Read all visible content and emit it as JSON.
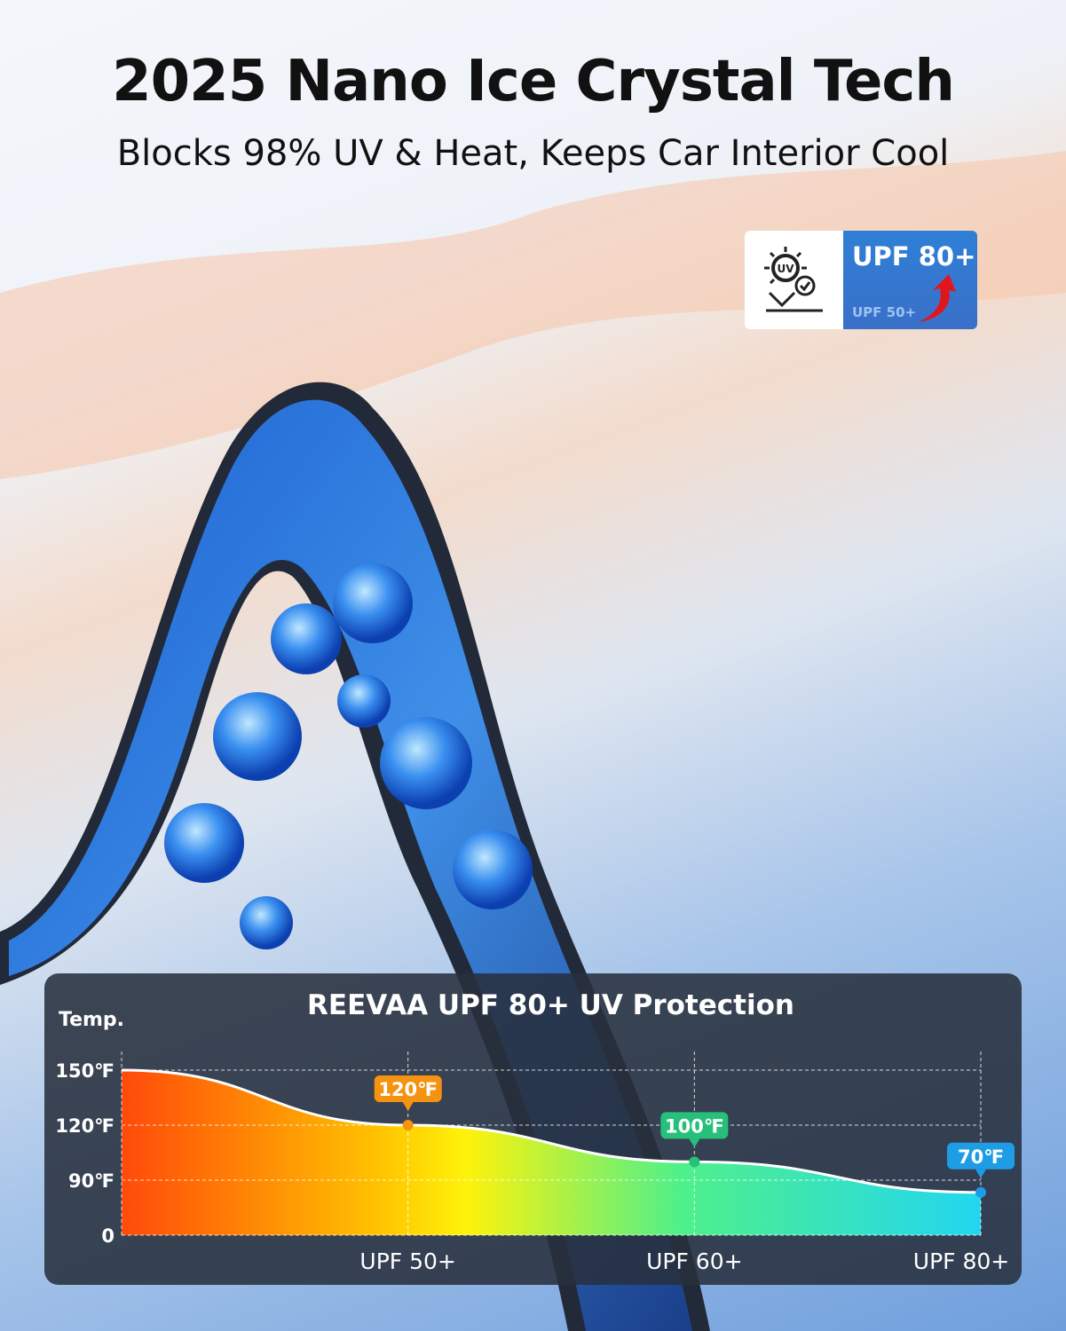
{
  "headline": "2025 Nano Ice Crystal Tech",
  "subheadline": "Blocks 98% UV & Heat, Keeps Car Interior Cool",
  "badge": {
    "icon": "uv-protection-icon",
    "icon_text": "UV",
    "main": "UPF 80+",
    "previous": "UPF 50+",
    "arrow": "red-up-arrow-icon"
  },
  "chart_data": {
    "type": "area",
    "title": "REEVAA UPF 80+ UV Protection",
    "ylabel": "Temp.",
    "y_ticks": [
      "150℉",
      "120℉",
      "90℉",
      "0"
    ],
    "y_tick_values": [
      150,
      120,
      90,
      0
    ],
    "categories": [
      "",
      "UPF 50+",
      "UPF 60+",
      "UPF 80+"
    ],
    "values": [
      150,
      120,
      100,
      70
    ],
    "data_labels": [
      "",
      "120℉",
      "100℉",
      "70℉"
    ],
    "label_colors": [
      "",
      "#f5920f",
      "#27c07a",
      "#1e9de6"
    ],
    "grid": true,
    "fill": "gradient red→yellow→green→cyan"
  }
}
